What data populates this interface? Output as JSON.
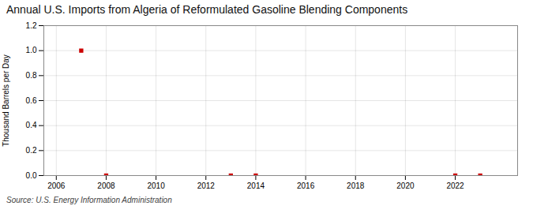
{
  "chart_data": {
    "type": "scatter",
    "title": "Annual U.S. Imports from Algeria of Reformulated Gasoline Blending Components",
    "ylabel": "Thousand Barrels per Day",
    "source": "Source: U.S. Energy Information Administration",
    "x": [
      2007,
      2008,
      2013,
      2014,
      2022,
      2023
    ],
    "values": [
      1.0,
      0.0,
      0.0,
      0.0,
      0.0,
      0.0
    ],
    "color": "#cc0000",
    "marker": "square",
    "xlim": [
      2005.5,
      2024.5
    ],
    "ylim": [
      0.0,
      1.2
    ],
    "xticks": [
      2006,
      2008,
      2010,
      2012,
      2014,
      2016,
      2018,
      2020,
      2022
    ],
    "yticks": [
      {
        "value": 0.0,
        "label": "0.0"
      },
      {
        "value": 0.2,
        "label": "0.2"
      },
      {
        "value": 0.4,
        "label": "0.4"
      },
      {
        "value": 0.6,
        "label": "0.6"
      },
      {
        "value": 0.8,
        "label": "0.8"
      },
      {
        "value": 1.0,
        "label": "1.0"
      },
      {
        "value": 1.2,
        "label": "1.2"
      }
    ],
    "grid": true
  }
}
